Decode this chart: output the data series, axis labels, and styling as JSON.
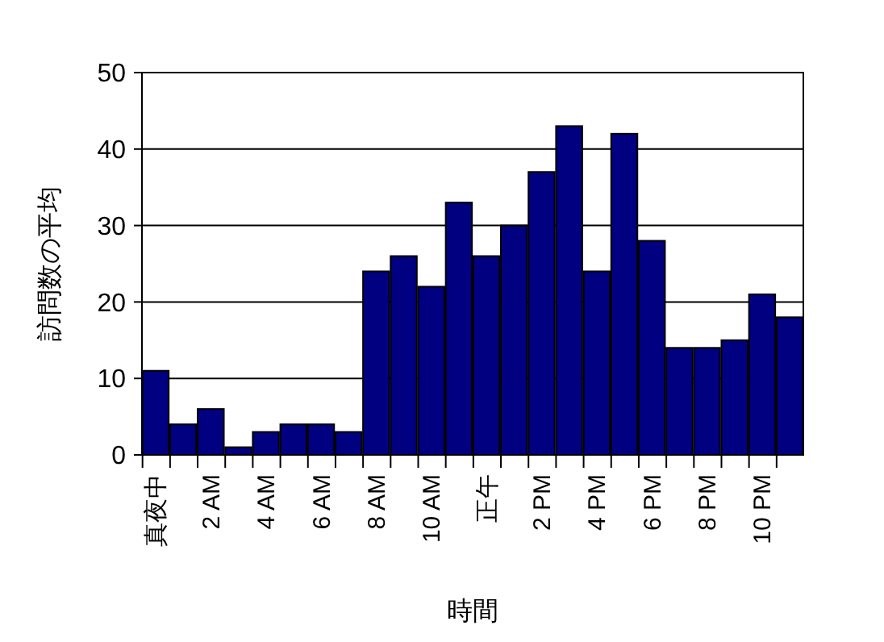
{
  "chart_data": {
    "type": "bar",
    "xlabel": "時間",
    "ylabel": "訪問数の平均",
    "categories": [
      "真夜中",
      null,
      "2 AM",
      null,
      "4 AM",
      null,
      "6 AM",
      null,
      "8 AM",
      null,
      "10 AM",
      null,
      "正午",
      null,
      "2 PM",
      null,
      "4 PM",
      null,
      "6 PM",
      null,
      "8 PM",
      null,
      "10 PM",
      null
    ],
    "values": [
      11,
      4,
      6,
      1,
      3,
      4,
      4,
      3,
      24,
      26,
      22,
      33,
      26,
      30,
      37,
      43,
      24,
      42,
      28,
      14,
      14,
      15,
      21,
      18
    ],
    "color": "#000080",
    "ylim": [
      0,
      50
    ],
    "yticks": [
      0,
      10,
      20,
      30,
      40,
      50
    ],
    "grid": "y"
  }
}
